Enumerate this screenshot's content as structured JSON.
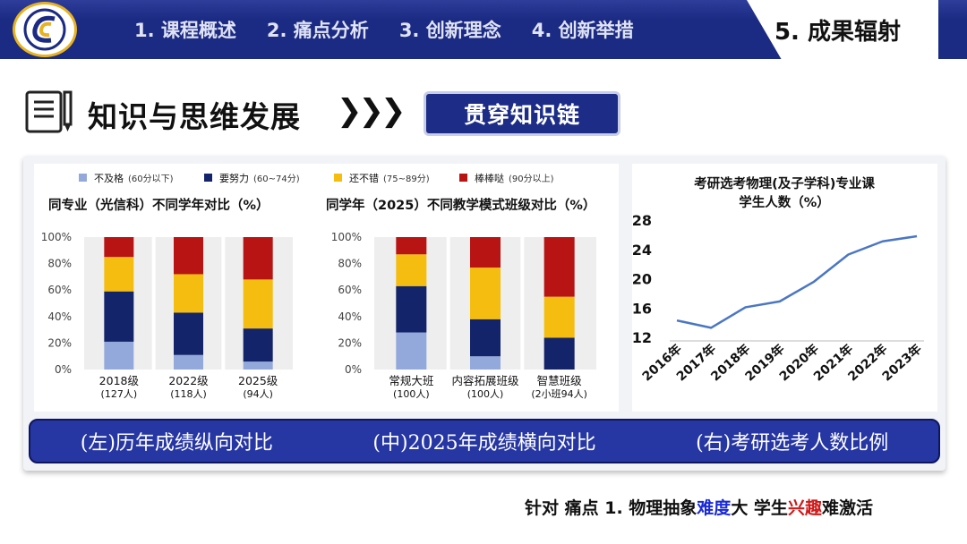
{
  "nav": {
    "items": [
      "1. 课程概述",
      "2. 痛点分析",
      "3. 创新理念",
      "4. 创新举措"
    ],
    "active": "5. 成果辐射"
  },
  "section": {
    "title": "知识与思维发展",
    "arrows": "❯❯❯",
    "button": "贯穿知识链"
  },
  "legend": [
    {
      "label": "不及格",
      "range": "(60分以下)",
      "color": "#93a9dc"
    },
    {
      "label": "要努力",
      "range": "(60~74分)",
      "color": "#14246a"
    },
    {
      "label": "还不错",
      "range": "(75~89分)",
      "color": "#f5bd0f"
    },
    {
      "label": "棒棒哒",
      "range": "(90分以上)",
      "color": "#b81414"
    }
  ],
  "chart_data": [
    {
      "type": "bar",
      "stacked": true,
      "title": "同专业（光信科）不同学年对比（%）",
      "categories": [
        "2018级",
        "2022级",
        "2025级"
      ],
      "category_notes": [
        "(127人)",
        "(118人)",
        "(94人)"
      ],
      "series": [
        {
          "name": "不及格",
          "values": [
            21,
            11,
            6
          ]
        },
        {
          "name": "要努力",
          "values": [
            38,
            32,
            25
          ]
        },
        {
          "name": "还不错",
          "values": [
            26,
            29,
            37
          ]
        },
        {
          "name": "棒棒哒",
          "values": [
            15,
            28,
            32
          ]
        }
      ],
      "yticks": [
        "0%",
        "20%",
        "40%",
        "60%",
        "80%",
        "100%"
      ],
      "ylim": [
        0,
        100
      ]
    },
    {
      "type": "bar",
      "stacked": true,
      "title": "同学年（2025）不同教学模式班级对比（%）",
      "categories": [
        "常规大班",
        "内容拓展班级",
        "智慧班级"
      ],
      "category_notes": [
        "(100人)",
        "(100人)",
        "(2小班94人)"
      ],
      "series": [
        {
          "name": "不及格",
          "values": [
            28,
            10,
            0
          ]
        },
        {
          "name": "要努力",
          "values": [
            35,
            28,
            24
          ]
        },
        {
          "name": "还不错",
          "values": [
            24,
            39,
            31
          ]
        },
        {
          "name": "棒棒哒",
          "values": [
            13,
            23,
            45
          ]
        }
      ],
      "yticks": [
        "0%",
        "20%",
        "40%",
        "60%",
        "80%",
        "100%"
      ],
      "ylim": [
        0,
        100
      ]
    },
    {
      "type": "line",
      "title_line1": "考研选考物理(及子学科)专业课",
      "title_line2": "学生人数（%）",
      "x": [
        "2016年",
        "2017年",
        "2018年",
        "2019年",
        "2020年",
        "2021年",
        "2022年",
        "2023年"
      ],
      "y": [
        14.3,
        13.3,
        16.1,
        16.9,
        19.6,
        23.3,
        25.1,
        25.8
      ],
      "yticks": [
        "12",
        "16",
        "20",
        "24",
        "28"
      ],
      "ylim": [
        12,
        28
      ],
      "color": "#4a76c4"
    }
  ],
  "captions": [
    "(左)历年成绩纵向对比",
    "(中)2025年成绩横向对比",
    "(右)考研选考人数比例"
  ],
  "footer": {
    "prefix": "针对  痛点 1. 物理抽象",
    "blue": "难度",
    "mid": "大  学生",
    "red": "兴趣",
    "suffix": "难激活"
  }
}
